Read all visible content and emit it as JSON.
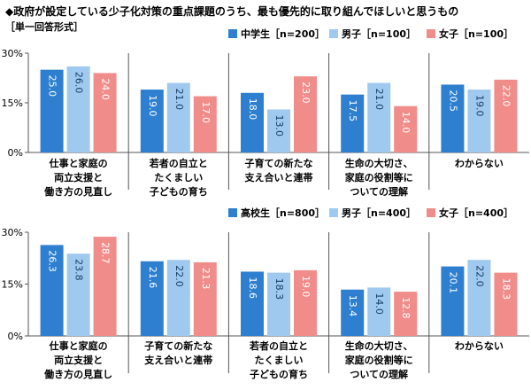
{
  "title": "◆政府が設定している少子化対策の重点課題のうち、最も優先的に取り組んでほしいと思うもの",
  "subtitle": "［単一回答形式］",
  "chart_data": [
    {
      "type": "bar",
      "categories": [
        [
          "仕事と家庭の",
          "両立支援と",
          "働き方の見直し"
        ],
        [
          "若者の自立と",
          "たくましい",
          "子どもの育ち"
        ],
        [
          "子育ての新たな",
          "支え合いと連帯"
        ],
        [
          "生命の大切さ、",
          "家庭の役割等に",
          "ついての理解"
        ],
        [
          "わからない"
        ]
      ],
      "series": [
        {
          "name": "中学生［n=200］",
          "color": "#2e7fcf",
          "values": [
            25.0,
            19.0,
            18.0,
            17.5,
            20.5
          ]
        },
        {
          "name": "男子［n=100］",
          "color": "#9fc9ef",
          "values": [
            26.0,
            21.0,
            13.0,
            21.0,
            19.0
          ]
        },
        {
          "name": "女子［n=100］",
          "color": "#f08d8b",
          "values": [
            24.0,
            17.0,
            23.0,
            14.0,
            22.0
          ]
        }
      ],
      "ylim": [
        0,
        30
      ],
      "yticks": [
        "0%",
        "15%",
        "30%"
      ],
      "ytick_values": [
        0,
        15,
        30
      ],
      "legend": "top-right",
      "grid": false
    },
    {
      "type": "bar",
      "categories": [
        [
          "仕事と家庭の",
          "両立支援と",
          "働き方の見直し"
        ],
        [
          "子育ての新たな",
          "支え合いと連帯"
        ],
        [
          "若者の自立と",
          "たくましい",
          "子どもの育ち"
        ],
        [
          "生命の大切さ、",
          "家庭の役割等に",
          "ついての理解"
        ],
        [
          "わからない"
        ]
      ],
      "series": [
        {
          "name": "高校生［n=800］",
          "color": "#2e7fcf",
          "values": [
            26.3,
            21.6,
            18.6,
            13.4,
            20.1
          ]
        },
        {
          "name": "男子［n=400］",
          "color": "#9fc9ef",
          "values": [
            23.8,
            22.0,
            18.3,
            14.0,
            22.0
          ]
        },
        {
          "name": "女子［n=400］",
          "color": "#f08d8b",
          "values": [
            28.7,
            21.3,
            19.0,
            12.8,
            18.3
          ]
        }
      ],
      "ylim": [
        0,
        30
      ],
      "yticks": [
        "0%",
        "15%",
        "30%"
      ],
      "ytick_values": [
        0,
        15,
        30
      ],
      "legend": "top-right",
      "grid": false
    }
  ]
}
